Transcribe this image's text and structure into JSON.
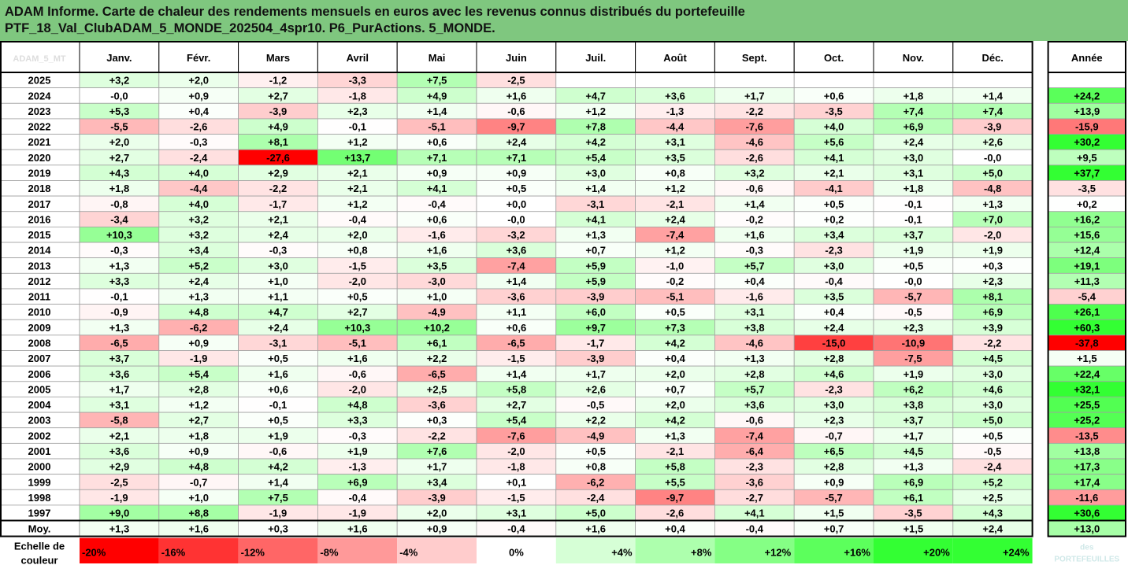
{
  "title_lines": [
    "ADAM Informe. Carte de chaleur des rendements mensuels en euros avec les revenus connus distribués du portefeuille",
    "PTF_18_Val_ClubADAM_5_MONDE_202504_4spr10. P6_PurActions. 5_MONDE."
  ],
  "corner_label": "ADAM_5_MT",
  "chart_data": {
    "type": "heatmap",
    "months": [
      "Janv.",
      "Févr.",
      "Mars",
      "Avril",
      "Mai",
      "Juin",
      "Juil.",
      "Août",
      "Sept.",
      "Oct.",
      "Nov.",
      "Déc."
    ],
    "year_header": "Année",
    "rows": [
      {
        "year": "2025",
        "values": [
          "+3,2",
          "+2,0",
          "-1,2",
          "-3,3",
          "+7,5",
          "-2,5",
          "",
          "",
          "",
          "",
          "",
          ""
        ],
        "total": ""
      },
      {
        "year": "2024",
        "values": [
          "-0,0",
          "+0,9",
          "+2,7",
          "-1,8",
          "+4,9",
          "+1,6",
          "+4,7",
          "+3,6",
          "+1,7",
          "+0,6",
          "+1,8",
          "+1,4"
        ],
        "total": "+24,2"
      },
      {
        "year": "2023",
        "values": [
          "+5,3",
          "+0,4",
          "-3,9",
          "+2,3",
          "+1,4",
          "-0,6",
          "+1,2",
          "-1,3",
          "-2,2",
          "-3,5",
          "+7,4",
          "+7,4"
        ],
        "total": "+13,9"
      },
      {
        "year": "2022",
        "values": [
          "-5,5",
          "-2,6",
          "+4,9",
          "-0,1",
          "-5,1",
          "-9,7",
          "+7,8",
          "-4,4",
          "-7,6",
          "+4,0",
          "+6,9",
          "-3,9"
        ],
        "total": "-15,9"
      },
      {
        "year": "2021",
        "values": [
          "+2,0",
          "-0,3",
          "+8,1",
          "+1,2",
          "+0,6",
          "+2,4",
          "+4,2",
          "+3,1",
          "-4,6",
          "+5,6",
          "+2,4",
          "+2,6"
        ],
        "total": "+30,2"
      },
      {
        "year": "2020",
        "values": [
          "+2,7",
          "-2,4",
          "-27,6",
          "+13,7",
          "+7,1",
          "+7,1",
          "+5,4",
          "+3,5",
          "-2,6",
          "+4,1",
          "+3,0",
          "-0,0"
        ],
        "total": "+9,5"
      },
      {
        "year": "2019",
        "values": [
          "+4,3",
          "+4,0",
          "+2,9",
          "+2,1",
          "+0,9",
          "+0,9",
          "+3,0",
          "+0,8",
          "+3,2",
          "+2,1",
          "+3,1",
          "+5,0"
        ],
        "total": "+37,7"
      },
      {
        "year": "2018",
        "values": [
          "+1,8",
          "-4,4",
          "-2,2",
          "+2,1",
          "+4,1",
          "+0,5",
          "+1,4",
          "+1,2",
          "-0,6",
          "-4,1",
          "+1,8",
          "-4,8"
        ],
        "total": "-3,5"
      },
      {
        "year": "2017",
        "values": [
          "-0,8",
          "+4,0",
          "-1,7",
          "+1,2",
          "-0,4",
          "+0,0",
          "-3,1",
          "-2,1",
          "+1,4",
          "+0,5",
          "-0,1",
          "+1,3"
        ],
        "total": "+0,2"
      },
      {
        "year": "2016",
        "values": [
          "-3,4",
          "+3,2",
          "+2,1",
          "-0,4",
          "+0,6",
          "-0,0",
          "+4,1",
          "+2,4",
          "-0,2",
          "+0,2",
          "-0,1",
          "+7,0"
        ],
        "total": "+16,2"
      },
      {
        "year": "2015",
        "values": [
          "+10,3",
          "+3,2",
          "+2,4",
          "+2,0",
          "-1,6",
          "-3,2",
          "+1,3",
          "-7,4",
          "+1,6",
          "+3,4",
          "+3,7",
          "-2,0"
        ],
        "total": "+15,6"
      },
      {
        "year": "2014",
        "values": [
          "-0,3",
          "+3,4",
          "-0,3",
          "+0,8",
          "+1,6",
          "+3,6",
          "+0,7",
          "+1,2",
          "-0,3",
          "-2,3",
          "+1,9",
          "+1,9"
        ],
        "total": "+12,4"
      },
      {
        "year": "2013",
        "values": [
          "+1,3",
          "+5,2",
          "+3,0",
          "-1,5",
          "+3,5",
          "-7,4",
          "+5,9",
          "-1,0",
          "+5,7",
          "+3,0",
          "+0,5",
          "+0,3"
        ],
        "total": "+19,1"
      },
      {
        "year": "2012",
        "values": [
          "+3,3",
          "+2,4",
          "+1,0",
          "-2,0",
          "-3,0",
          "+1,4",
          "+5,9",
          "-0,2",
          "+0,4",
          "-0,4",
          "-0,0",
          "+2,3"
        ],
        "total": "+11,3"
      },
      {
        "year": "2011",
        "values": [
          "-0,1",
          "+1,3",
          "+1,1",
          "+0,5",
          "+1,0",
          "-3,6",
          "-3,9",
          "-5,1",
          "-1,6",
          "+3,5",
          "-5,7",
          "+8,1"
        ],
        "total": "-5,4"
      },
      {
        "year": "2010",
        "values": [
          "-0,9",
          "+4,8",
          "+4,7",
          "+2,7",
          "-4,9",
          "+1,1",
          "+6,0",
          "+0,5",
          "+3,1",
          "+0,4",
          "-0,5",
          "+6,9"
        ],
        "total": "+26,1"
      },
      {
        "year": "2009",
        "values": [
          "+1,3",
          "-6,2",
          "+2,4",
          "+10,3",
          "+10,2",
          "+0,6",
          "+9,7",
          "+7,3",
          "+3,8",
          "+2,4",
          "+2,3",
          "+3,9"
        ],
        "total": "+60,3"
      },
      {
        "year": "2008",
        "values": [
          "-6,5",
          "+0,9",
          "-3,1",
          "-5,1",
          "+6,1",
          "-6,5",
          "-1,7",
          "+4,2",
          "-4,6",
          "-15,0",
          "-10,9",
          "-2,2"
        ],
        "total": "-37,8"
      },
      {
        "year": "2007",
        "values": [
          "+3,7",
          "-1,9",
          "+0,5",
          "+1,6",
          "+2,2",
          "-1,5",
          "-3,9",
          "+0,4",
          "+1,3",
          "+2,8",
          "-7,5",
          "+4,5"
        ],
        "total": "+1,5"
      },
      {
        "year": "2006",
        "values": [
          "+3,6",
          "+5,4",
          "+1,6",
          "-0,6",
          "-6,5",
          "+1,4",
          "+1,7",
          "+2,0",
          "+2,8",
          "+4,6",
          "+1,9",
          "+3,0"
        ],
        "total": "+22,4"
      },
      {
        "year": "2005",
        "values": [
          "+1,7",
          "+2,8",
          "+0,6",
          "-2,0",
          "+2,5",
          "+5,8",
          "+2,6",
          "+0,7",
          "+5,7",
          "-2,3",
          "+6,2",
          "+4,6"
        ],
        "total": "+32,1"
      },
      {
        "year": "2004",
        "values": [
          "+3,1",
          "+1,2",
          "-0,1",
          "+4,8",
          "-3,6",
          "+2,7",
          "-0,5",
          "+2,0",
          "+3,6",
          "+3,0",
          "+3,8",
          "+3,0"
        ],
        "total": "+25,5"
      },
      {
        "year": "2003",
        "values": [
          "-5,8",
          "+2,7",
          "+0,5",
          "+3,3",
          "+0,3",
          "+5,4",
          "+2,2",
          "+4,2",
          "-0,6",
          "+2,3",
          "+3,7",
          "+5,0"
        ],
        "total": "+25,2"
      },
      {
        "year": "2002",
        "values": [
          "+2,1",
          "+1,8",
          "+1,9",
          "-0,3",
          "-2,2",
          "-7,6",
          "-4,9",
          "+1,3",
          "-7,4",
          "-0,7",
          "+1,7",
          "+0,5"
        ],
        "total": "-13,5"
      },
      {
        "year": "2001",
        "values": [
          "+3,6",
          "+0,9",
          "-0,6",
          "+1,9",
          "+7,6",
          "-2,0",
          "+0,5",
          "-2,1",
          "-6,4",
          "+6,5",
          "+4,5",
          "-0,5"
        ],
        "total": "+13,8"
      },
      {
        "year": "2000",
        "values": [
          "+2,9",
          "+4,8",
          "+4,2",
          "-1,3",
          "+1,7",
          "-1,8",
          "+0,8",
          "+5,8",
          "-2,3",
          "+2,8",
          "+1,3",
          "-2,4"
        ],
        "total": "+17,3"
      },
      {
        "year": "1999",
        "values": [
          "-2,5",
          "-0,7",
          "+1,4",
          "+6,9",
          "+3,4",
          "+0,1",
          "-6,2",
          "+5,5",
          "-3,6",
          "+0,9",
          "+6,9",
          "+5,2"
        ],
        "total": "+17,4"
      },
      {
        "year": "1998",
        "values": [
          "-1,9",
          "+1,0",
          "+7,5",
          "-0,4",
          "-3,9",
          "-1,5",
          "-2,4",
          "-9,7",
          "-2,7",
          "-5,7",
          "+6,1",
          "+2,5"
        ],
        "total": "-11,6"
      },
      {
        "year": "1997",
        "values": [
          "+9,0",
          "+8,8",
          "-1,9",
          "-1,9",
          "+2,0",
          "+3,1",
          "+5,0",
          "-2,6",
          "+4,1",
          "+1,5",
          "-3,5",
          "+4,3"
        ],
        "total": "+30,6"
      }
    ],
    "average": {
      "label": "Moy.",
      "values": [
        "+1,3",
        "+1,6",
        "+0,3",
        "+1,6",
        "+0,9",
        "-0,4",
        "+1,6",
        "+0,4",
        "-0,4",
        "+0,7",
        "+1,5",
        "+2,4"
      ],
      "total": "+13,0"
    },
    "scale": {
      "label_lines": [
        "Echelle de",
        "couleur"
      ],
      "steps": [
        {
          "label": "-20%",
          "value": -20
        },
        {
          "label": "-16%",
          "value": -16
        },
        {
          "label": "-12%",
          "value": -12
        },
        {
          "label": "-8%",
          "value": -8
        },
        {
          "label": "-4%",
          "value": -4
        },
        {
          "label": "0%",
          "value": 0
        },
        {
          "label": "+4%",
          "value": 4
        },
        {
          "label": "+8%",
          "value": 8
        },
        {
          "label": "+12%",
          "value": 12
        },
        {
          "label": "+16%",
          "value": 16
        },
        {
          "label": "+20%",
          "value": 20
        },
        {
          "label": "+24%",
          "value": 24
        }
      ],
      "watermark": "des PORTEFEUILLES"
    },
    "colors": {
      "negative": "#ff0000",
      "positive": "#33ff33",
      "neutral": "#ffffff",
      "title_bg": "#7fc77f"
    }
  }
}
